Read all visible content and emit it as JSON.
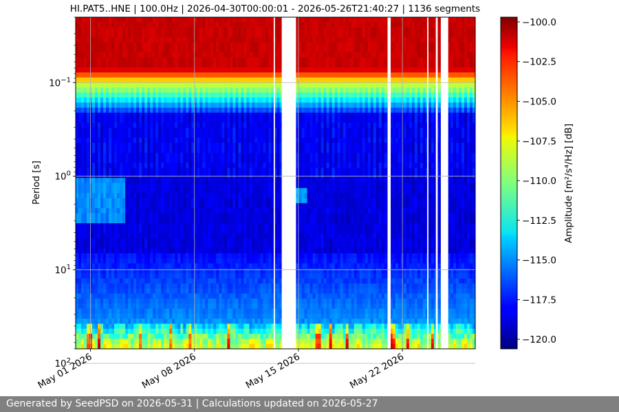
{
  "chart_data": {
    "type": "heatmap",
    "title": "HI.PAT5..HNE | 100.0Hz | 2026-04-30T00:00:01 - 2026-05-26T21:40:27 | 1136 segments",
    "ylabel": "Period [s]",
    "y_scale": "log",
    "y_inverted": true,
    "ylim": [
      0.02,
      70
    ],
    "y_ticks": [
      {
        "value": 0.1,
        "label": "10⁻¹"
      },
      {
        "value": 1,
        "label": "10⁰"
      },
      {
        "value": 10,
        "label": "10¹"
      },
      {
        "value": 100,
        "label": "10²"
      }
    ],
    "x_range": [
      "2026-04-30T00:00:01",
      "2026-05-26T21:40:27"
    ],
    "x_ticks": [
      {
        "value": "2026-05-01",
        "label": "May 01 2026"
      },
      {
        "value": "2026-05-08",
        "label": "May 08 2026"
      },
      {
        "value": "2026-05-15",
        "label": "May 15 2026"
      },
      {
        "value": "2026-05-22",
        "label": "May 22 2026"
      }
    ],
    "data_gaps": [
      [
        "2026-05-13T08:00:00",
        "2026-05-13T10:00:00"
      ],
      [
        "2026-05-13T21:00:00",
        "2026-05-14T20:00:00"
      ],
      [
        "2026-05-21T00:00:00",
        "2026-05-21T05:00:00"
      ],
      [
        "2026-05-23T16:00:00",
        "2026-05-23T18:00:00"
      ],
      [
        "2026-05-24T06:00:00",
        "2026-05-24T09:00:00"
      ],
      [
        "2026-05-24T14:00:00",
        "2026-05-25T02:00:00"
      ]
    ],
    "colorbar": {
      "label": "Amplitude [m²/s⁴/Hz] [dB]",
      "colormap": "jet",
      "range": [
        -120.6,
        -99.7
      ],
      "ticks": [
        -100.0,
        -102.5,
        -105.0,
        -107.5,
        -110.0,
        -112.5,
        -115.0,
        -117.5,
        -120.0
      ],
      "tick_labels": [
        "−100.0",
        "−102.5",
        "−105.0",
        "−107.5",
        "−110.0",
        "−112.5",
        "−115.0",
        "−117.5",
        "−120.0"
      ]
    },
    "grid": true
  },
  "footer": {
    "text": "Generated by SeedPSD on 2026-05-31 | Calculations updated on 2026-05-27"
  }
}
